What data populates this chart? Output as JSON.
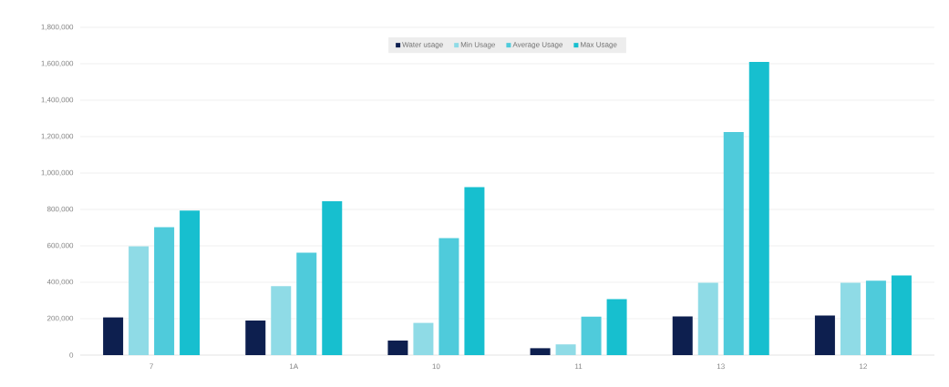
{
  "chart_data": {
    "type": "bar",
    "categories": [
      "7",
      "1A",
      "10",
      "11",
      "13",
      "12"
    ],
    "series": [
      {
        "name": "Water usage",
        "color": "#0d1f4f",
        "values": [
          207000,
          190000,
          80000,
          38000,
          213000,
          217000
        ]
      },
      {
        "name": "Min Usage",
        "color": "#8fdbe6",
        "values": [
          597000,
          379000,
          177000,
          59000,
          397000,
          397000
        ]
      },
      {
        "name": "Average Usage",
        "color": "#4fcbdb",
        "values": [
          703000,
          562000,
          643000,
          211000,
          1225000,
          409000
        ]
      },
      {
        "name": "Max Usage",
        "color": "#17bfcf",
        "values": [
          794000,
          845000,
          922000,
          308000,
          1610000,
          437000
        ]
      }
    ],
    "ylim": [
      0,
      1800000
    ],
    "yticks": [
      0,
      {
        "value": 200000,
        "label": "200,000"
      },
      {
        "value": 400000,
        "label": "400,000"
      },
      {
        "value": 600000,
        "label": "600,000"
      },
      {
        "value": 800000,
        "label": "800,000"
      },
      {
        "value": 1000000,
        "label": "1,000,000"
      },
      {
        "value": 1200000,
        "label": "1,200,000"
      },
      {
        "value": 1400000,
        "label": "1,400,000"
      },
      {
        "value": 1600000,
        "label": "1,600,000"
      },
      {
        "value": 1800000,
        "label": "1,800,000"
      }
    ],
    "grid": "y",
    "legend": "top"
  }
}
